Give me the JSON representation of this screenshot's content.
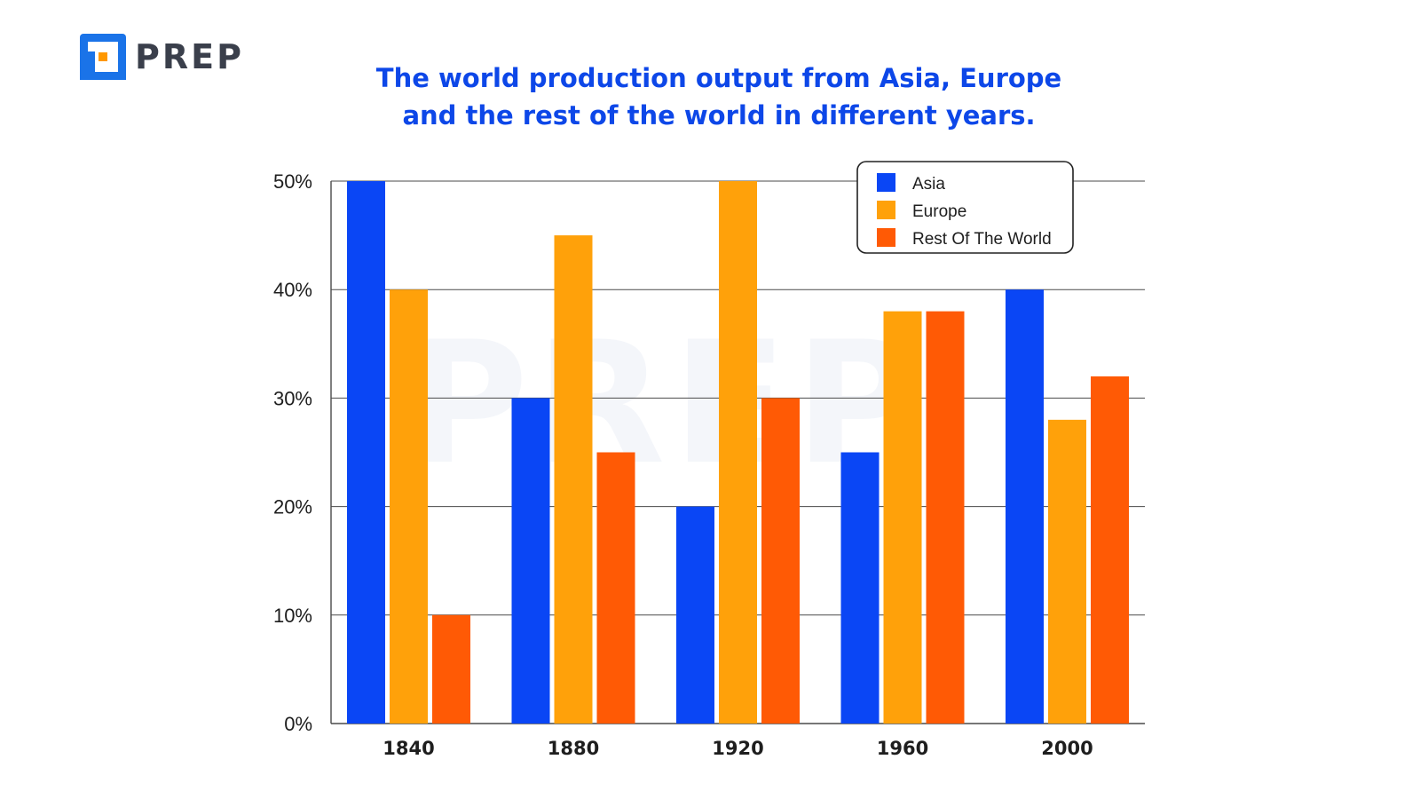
{
  "brand": {
    "name": "PREP",
    "logo_colors": {
      "blue": "#1a73e8",
      "orange": "#ff9800"
    }
  },
  "colors": {
    "title": "#0d47e8",
    "asia": "#0a46f5",
    "europe": "#ffa10a",
    "rest": "#ff5a05",
    "grid": "#4a4a4a"
  },
  "chart_data": {
    "type": "bar",
    "title_lines": [
      "The world production output from Asia, Europe",
      "and the rest of the world in different years."
    ],
    "categories": [
      "1840",
      "1880",
      "1920",
      "1960",
      "2000"
    ],
    "series": [
      {
        "name": "Asia",
        "color": "#0a46f5",
        "values": [
          50,
          30,
          20,
          25,
          40
        ]
      },
      {
        "name": "Europe",
        "color": "#ffa10a",
        "values": [
          40,
          45,
          50,
          38,
          28
        ]
      },
      {
        "name": "Rest Of The World",
        "color": "#ff5a05",
        "values": [
          10,
          25,
          30,
          38,
          32
        ]
      }
    ],
    "yticks": [
      "0%",
      "10%",
      "20%",
      "30%",
      "40%",
      "50%"
    ],
    "ylim": [
      0,
      50
    ],
    "xlabel": "",
    "ylabel": "",
    "grid": true,
    "legend_position": "top-right",
    "watermark": "PREP"
  }
}
